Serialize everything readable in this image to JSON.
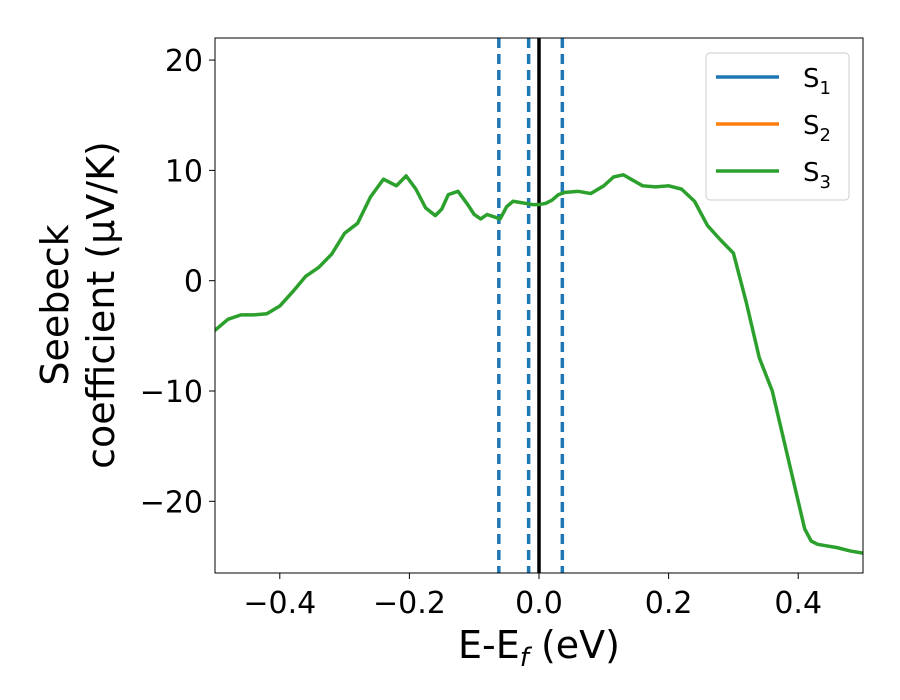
{
  "chart_data": {
    "type": "line",
    "xlabel": "E-E",
    "xlabel_sub": "f",
    "xlabel_unit": " (eV)",
    "ylabel_line1": "Seebeck",
    "ylabel_line2": "coefficient  (μV/K)",
    "xlim": [
      -0.5,
      0.5
    ],
    "ylim": [
      -26.5,
      22
    ],
    "xticks": [
      -0.4,
      -0.2,
      0.0,
      0.2,
      0.4
    ],
    "xtick_labels": [
      "−0.4",
      "−0.2",
      "0.0",
      "0.2",
      "0.4"
    ],
    "yticks": [
      -20,
      -10,
      0,
      10,
      20
    ],
    "ytick_labels": [
      "−20",
      "−10",
      "0",
      "10",
      "20"
    ],
    "grid": false,
    "legend_position": "top-right",
    "vlines": [
      {
        "x": -0.062,
        "style": "dashed",
        "color": "#1f77b4"
      },
      {
        "x": -0.016,
        "style": "dashed",
        "color": "#1f77b4"
      },
      {
        "x": 0.036,
        "style": "dashed",
        "color": "#1f77b4"
      },
      {
        "x": 0.0,
        "style": "solid",
        "color": "#000000"
      }
    ],
    "series": [
      {
        "name": "S",
        "sub": "1",
        "color": "#1f77b4"
      },
      {
        "name": "S",
        "sub": "2",
        "color": "#ff7f0e"
      },
      {
        "name": "S",
        "sub": "3",
        "color": "#2ca02c",
        "x": [
          -0.5,
          -0.48,
          -0.46,
          -0.44,
          -0.42,
          -0.4,
          -0.38,
          -0.36,
          -0.34,
          -0.32,
          -0.3,
          -0.28,
          -0.26,
          -0.24,
          -0.22,
          -0.205,
          -0.19,
          -0.175,
          -0.16,
          -0.15,
          -0.14,
          -0.125,
          -0.11,
          -0.1,
          -0.09,
          -0.08,
          -0.07,
          -0.06,
          -0.05,
          -0.04,
          -0.03,
          -0.02,
          -0.01,
          0.0,
          0.01,
          0.02,
          0.03,
          0.04,
          0.06,
          0.08,
          0.1,
          0.115,
          0.13,
          0.145,
          0.16,
          0.18,
          0.2,
          0.22,
          0.24,
          0.26,
          0.28,
          0.3,
          0.32,
          0.34,
          0.36,
          0.38,
          0.4,
          0.41,
          0.42,
          0.43,
          0.44,
          0.46,
          0.48,
          0.5
        ],
        "y": [
          -4.5,
          -3.5,
          -3.1,
          -3.1,
          -3.0,
          -2.3,
          -1.0,
          0.4,
          1.2,
          2.4,
          4.3,
          5.2,
          7.6,
          9.2,
          8.6,
          9.5,
          8.3,
          6.6,
          5.9,
          6.5,
          7.8,
          8.1,
          6.9,
          6.0,
          5.6,
          6.0,
          5.8,
          5.6,
          6.7,
          7.2,
          7.1,
          7.0,
          6.9,
          6.9,
          7.0,
          7.3,
          7.8,
          8.0,
          8.1,
          7.9,
          8.6,
          9.4,
          9.6,
          9.1,
          8.6,
          8.5,
          8.6,
          8.3,
          7.2,
          5.0,
          3.7,
          2.5,
          -2.0,
          -7.0,
          -10.0,
          -15.0,
          -20.0,
          -22.5,
          -23.6,
          -23.9,
          -24.0,
          -24.2,
          -24.5,
          -24.7
        ]
      }
    ]
  }
}
